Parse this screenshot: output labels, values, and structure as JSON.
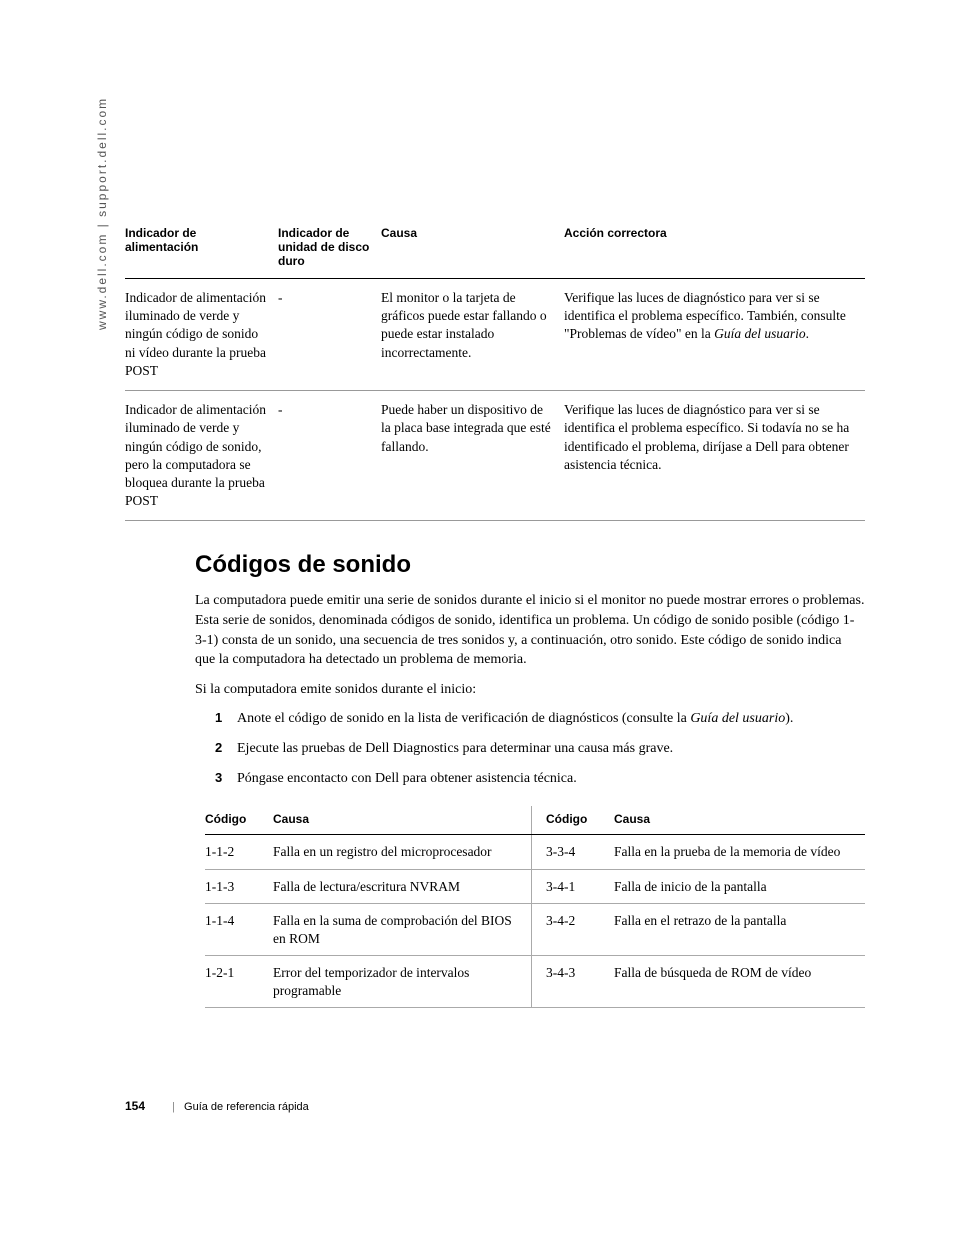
{
  "side_url": "www.dell.com | support.dell.com",
  "table1": {
    "headers": [
      "Indicador de alimentación",
      "Indicador de unidad de disco duro",
      "Causa",
      "Acción correctora"
    ],
    "rows": [
      {
        "power": "Indicador de alimentación iluminado de verde y ningún código de sonido ni vídeo durante la prueba POST",
        "hdd": "-",
        "cause": "El monitor o la tarjeta de gráficos puede estar fallando o puede estar instalado incorrectamente.",
        "action_pre": "Verifique las luces de diagnóstico para ver si se identifica el problema específico. También, consulte \"Problemas de vídeo\" en la ",
        "action_italic": "Guía del usuario",
        "action_post": "."
      },
      {
        "power": "Indicador de alimentación iluminado de verde y ningún código de sonido, pero la computadora se bloquea durante la prueba POST",
        "hdd": "-",
        "cause": "Puede haber un dispositivo de la placa base integrada que esté fallando.",
        "action_pre": "Verifique las luces de diagnóstico para ver si se identifica el problema específico. Si todavía no se ha identificado el problema, diríjase a Dell para obtener asistencia técnica.",
        "action_italic": "",
        "action_post": ""
      }
    ]
  },
  "section_title": "Códigos de sonido",
  "para1": "La computadora puede emitir una serie de sonidos durante el inicio si el monitor no puede mostrar errores o problemas. Esta serie de sonidos, denominada códigos de sonido, identifica un problema. Un código de sonido posible (código 1-3-1) consta de un sonido, una secuencia de tres sonidos y, a continuación, otro sonido. Este código de sonido indica que la computadora ha detectado un problema de memoria.",
  "para2": "Si la computadora emite sonidos durante el inicio:",
  "steps": [
    {
      "pre": "Anote el código de sonido en la lista de verificación de diagnósticos (consulte la ",
      "italic": "Guía del usuario",
      "post": ")."
    },
    {
      "pre": "Ejecute las pruebas de Dell Diagnostics para determinar una causa más grave.",
      "italic": "",
      "post": ""
    },
    {
      "pre": "Póngase encontacto con Dell para obtener asistencia técnica.",
      "italic": "",
      "post": ""
    }
  ],
  "table2": {
    "headers": [
      "Código",
      "Causa",
      "Código",
      "Causa"
    ],
    "rows": [
      {
        "c1": "1-1-2",
        "d1": "Falla en un registro del microprocesador",
        "c2": "3-3-4",
        "d2": "Falla en la prueba de la memoria de vídeo"
      },
      {
        "c1": "1-1-3",
        "d1": "Falla de lectura/escritura NVRAM",
        "c2": "3-4-1",
        "d2": "Falla de inicio de la pantalla"
      },
      {
        "c1": "1-1-4",
        "d1": "Falla en la suma de comprobación del BIOS en ROM",
        "c2": "3-4-2",
        "d2": "Falla en el retrazo de la pantalla"
      },
      {
        "c1": "1-2-1",
        "d1": "Error del temporizador de intervalos programable",
        "c2": "3-4-3",
        "d2": "Falla de búsqueda de ROM de vídeo"
      }
    ]
  },
  "footer": {
    "page_number": "154",
    "doc_title": "Guía de referencia rápida"
  }
}
